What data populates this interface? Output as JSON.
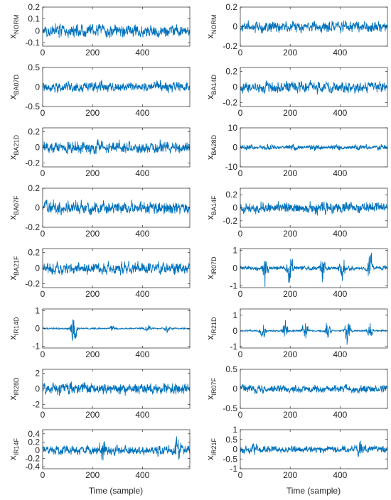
{
  "figure": {
    "xlabel": "Time (sample)",
    "line_color": "#0072BD"
  },
  "chart_data": [
    {
      "type": "line",
      "ylabel_main": "x",
      "ylabel_sub": "NORM",
      "xlim": [
        0,
        590
      ],
      "ylim": [
        -0.13,
        0.2
      ],
      "xticks": [
        0,
        200,
        400
      ],
      "yticks": [
        -0.1,
        0,
        0.1,
        0.2
      ],
      "ytick_labels": [
        "-0.1",
        "0",
        "0.1",
        "0.2"
      ],
      "n": 590,
      "amp": 0.055,
      "env": "flat",
      "seed": 11
    },
    {
      "type": "line",
      "ylabel_main": "x",
      "ylabel_sub": "NORM",
      "xlim": [
        0,
        590
      ],
      "ylim": [
        -0.2,
        0.2
      ],
      "xticks": [
        0,
        200,
        400
      ],
      "yticks": [
        -0.2,
        0,
        0.2
      ],
      "ytick_labels": [
        "-0.2",
        "0",
        "0.2"
      ],
      "n": 590,
      "amp": 0.06,
      "env": "flat",
      "seed": 12
    },
    {
      "type": "line",
      "ylabel_main": "x",
      "ylabel_sub": "BA07D",
      "xlim": [
        0,
        590
      ],
      "ylim": [
        -0.5,
        0.5
      ],
      "xticks": [
        0,
        200,
        400
      ],
      "yticks": [
        -0.5,
        0,
        0.5
      ],
      "ytick_labels": [
        "-0.5",
        "0",
        "0.5"
      ],
      "n": 590,
      "amp": 0.13,
      "env": "flat",
      "seed": 13
    },
    {
      "type": "line",
      "ylabel_main": "x",
      "ylabel_sub": "BA14D",
      "xlim": [
        0,
        590
      ],
      "ylim": [
        -0.25,
        0.25
      ],
      "xticks": [
        0,
        200,
        400
      ],
      "yticks": [
        -0.2,
        0,
        0.2
      ],
      "ytick_labels": [
        "-0.2",
        "0",
        "0.2"
      ],
      "n": 590,
      "amp": 0.075,
      "env": "flat",
      "seed": 14
    },
    {
      "type": "line",
      "ylabel_main": "x",
      "ylabel_sub": "BA21D",
      "xlim": [
        0,
        590
      ],
      "ylim": [
        -0.25,
        0.25
      ],
      "xticks": [
        0,
        200,
        400
      ],
      "yticks": [
        -0.2,
        0,
        0.2
      ],
      "ytick_labels": [
        "-0.2",
        "0",
        "0.2"
      ],
      "n": 590,
      "amp": 0.08,
      "env": "flat",
      "seed": 15
    },
    {
      "type": "line",
      "ylabel_main": "x",
      "ylabel_sub": "BA28D",
      "xlim": [
        0,
        590
      ],
      "ylim": [
        -10,
        10
      ],
      "xticks": [
        0,
        200,
        400
      ],
      "yticks": [
        -10,
        0,
        10
      ],
      "ytick_labels": [
        "-10",
        "0",
        "10"
      ],
      "n": 590,
      "amp": 1.8,
      "env": "wave",
      "seed": 16
    },
    {
      "type": "line",
      "ylabel_main": "x",
      "ylabel_sub": "BA07F",
      "xlim": [
        0,
        590
      ],
      "ylim": [
        -0.2,
        0.2
      ],
      "xticks": [
        0,
        200,
        400
      ],
      "yticks": [
        -0.2,
        0,
        0.2
      ],
      "ytick_labels": [
        "-0.2",
        "0",
        "0.2"
      ],
      "n": 590,
      "amp": 0.065,
      "env": "flat",
      "seed": 17
    },
    {
      "type": "line",
      "ylabel_main": "x",
      "ylabel_sub": "BA14F",
      "xlim": [
        0,
        590
      ],
      "ylim": [
        -0.3,
        0.3
      ],
      "xticks": [
        0,
        200,
        400
      ],
      "yticks": [
        -0.2,
        0,
        0.2
      ],
      "ytick_labels": [
        "-0.2",
        "0",
        "0.2"
      ],
      "n": 590,
      "amp": 0.09,
      "env": "flat",
      "seed": 18
    },
    {
      "type": "line",
      "ylabel_main": "x",
      "ylabel_sub": "BA21F",
      "xlim": [
        0,
        590
      ],
      "ylim": [
        -0.25,
        0.25
      ],
      "xticks": [
        0,
        200,
        400
      ],
      "yticks": [
        -0.2,
        0,
        0.2
      ],
      "ytick_labels": [
        "-0.2",
        "0",
        "0.2"
      ],
      "n": 590,
      "amp": 0.075,
      "env": "flat",
      "seed": 19
    },
    {
      "type": "line",
      "ylabel_main": "x",
      "ylabel_sub": "IR07D",
      "xlim": [
        0,
        590
      ],
      "ylim": [
        -1.1,
        1.1
      ],
      "xticks": [
        0,
        200,
        400
      ],
      "yticks": [
        -1,
        0,
        1
      ],
      "ytick_labels": [
        "-1",
        "0",
        "1"
      ],
      "n": 590,
      "amp": 0.12,
      "env": "bursts",
      "bursts": [
        [
          100,
          0.8
        ],
        [
          200,
          0.9
        ],
        [
          330,
          0.7
        ],
        [
          410,
          0.8
        ],
        [
          520,
          0.9
        ]
      ],
      "seed": 20
    },
    {
      "type": "line",
      "ylabel_main": "x",
      "ylabel_sub": "IR14D",
      "xlim": [
        0,
        590
      ],
      "ylim": [
        -1.1,
        1.1
      ],
      "xticks": [
        0,
        200,
        400
      ],
      "yticks": [
        -1,
        0,
        1
      ],
      "ytick_labels": [
        "-1",
        "0",
        "1"
      ],
      "n": 590,
      "amp": 0.04,
      "env": "bursts",
      "bursts": [
        [
          125,
          1.0
        ],
        [
          280,
          0.2
        ],
        [
          420,
          0.25
        ],
        [
          500,
          0.22
        ]
      ],
      "seed": 21
    },
    {
      "type": "line",
      "ylabel_main": "x",
      "ylabel_sub": "IR21D",
      "xlim": [
        0,
        590
      ],
      "ylim": [
        -1.1,
        1.4
      ],
      "xticks": [
        0,
        200,
        400
      ],
      "yticks": [
        -1,
        0,
        1
      ],
      "ytick_labels": [
        "-1",
        "0",
        "1"
      ],
      "n": 590,
      "amp": 0.05,
      "env": "bursts",
      "bursts": [
        [
          90,
          0.5
        ],
        [
          180,
          0.7
        ],
        [
          260,
          0.9
        ],
        [
          350,
          0.6
        ],
        [
          430,
          0.8
        ],
        [
          520,
          0.6
        ]
      ],
      "seed": 22
    },
    {
      "type": "line",
      "ylabel_main": "x",
      "ylabel_sub": "IR28D",
      "xlim": [
        0,
        590
      ],
      "ylim": [
        -2.5,
        2.5
      ],
      "xticks": [
        0,
        200,
        400
      ],
      "yticks": [
        -2,
        0,
        2
      ],
      "ytick_labels": [
        "-2",
        "0",
        "2"
      ],
      "n": 590,
      "amp": 0.75,
      "env": "flat",
      "seed": 23
    },
    {
      "type": "line",
      "ylabel_main": "x",
      "ylabel_sub": "IR07F",
      "xlim": [
        0,
        590
      ],
      "ylim": [
        -0.5,
        0.5
      ],
      "xticks": [
        0,
        200,
        400
      ],
      "yticks": [
        -0.5,
        0,
        0.5
      ],
      "ytick_labels": [
        "-0.5",
        "0",
        "0.5"
      ],
      "n": 590,
      "amp": 0.1,
      "env": "flat",
      "seed": 24
    },
    {
      "type": "line",
      "ylabel_main": "x",
      "ylabel_sub": "IR14F",
      "xlim": [
        0,
        590
      ],
      "ylim": [
        -0.45,
        0.5
      ],
      "xticks": [
        0,
        200,
        400
      ],
      "yticks": [
        -0.4,
        -0.2,
        0,
        0.2,
        0.4
      ],
      "ytick_labels": [
        "-0.4",
        "-0.2",
        "0",
        "0.2",
        "0.4"
      ],
      "n": 590,
      "amp": 0.11,
      "env": "bursts",
      "bursts": [
        [
          240,
          0.25
        ],
        [
          540,
          0.3
        ]
      ],
      "seed": 25
    },
    {
      "type": "line",
      "ylabel_main": "x",
      "ylabel_sub": "IR21F",
      "xlim": [
        0,
        590
      ],
      "ylim": [
        -1,
        1
      ],
      "xticks": [
        0,
        200,
        400
      ],
      "yticks": [
        -1,
        -0.5,
        0,
        0.5,
        1
      ],
      "ytick_labels": [
        "-1",
        "-0.5",
        "0",
        "0.5",
        "1"
      ],
      "n": 590,
      "amp": 0.18,
      "env": "bursts",
      "bursts": [
        [
          60,
          0.25
        ],
        [
          480,
          0.4
        ]
      ],
      "seed": 26
    }
  ]
}
